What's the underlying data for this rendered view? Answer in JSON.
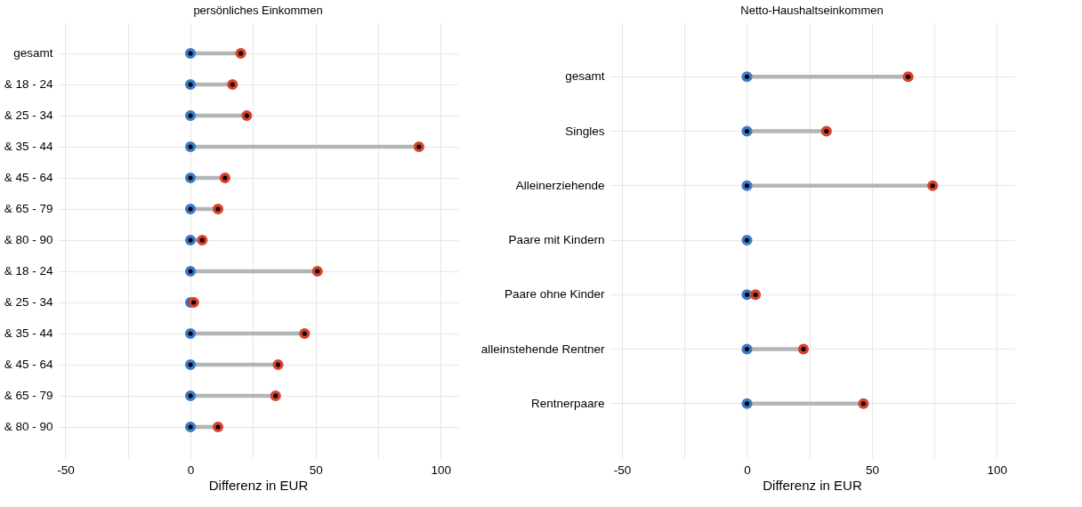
{
  "chart_data": [
    {
      "type": "lollipop",
      "orientation": "horizontal",
      "title": "persönliches Einkommen",
      "xlabel": "Differenz in EUR",
      "categories": [
        "gesamt",
        "& 18 - 24",
        "& 25 - 34",
        "& 35 - 44",
        "& 45 - 64",
        "& 65 - 79",
        "& 80 - 90",
        "& 18 - 24",
        "& 25 - 34",
        "& 35 - 44",
        "& 45 - 64",
        "& 65 - 79",
        "& 80 - 90"
      ],
      "series": [
        {
          "type": "scatter",
          "color": "#3a7bc8",
          "values": [
            0,
            0,
            0,
            0,
            0,
            0,
            0,
            0,
            0,
            0,
            0,
            0,
            0
          ]
        },
        {
          "color": "#d9412b",
          "values": [
            20.1,
            16.8,
            22.5,
            91.3,
            13.8,
            11,
            4.7,
            50.7,
            1.3,
            45.6,
            35,
            34,
            11
          ]
        }
      ],
      "xlim": [
        -53,
        107
      ],
      "xticks": [
        -50,
        {
          "value": -25,
          "label": null
        },
        0,
        {
          "value": 25,
          "label": null
        },
        50,
        {
          "value": 75,
          "label": null
        },
        100
      ],
      "grid": true,
      "marker": "circle"
    },
    {
      "type": "lollipop",
      "orientation": "horizontal",
      "title": "Netto-Haushaltseinkommen",
      "xlabel": "Differenz in EUR",
      "categories": [
        "gesamt",
        "Singles",
        "Alleinerziehende",
        "Paare mit Kindern",
        "Paare ohne Kinder",
        "alleinstehende Rentner",
        "Rentnerpaare"
      ],
      "series": [
        {
          "type": "scatter",
          "color": "#3a7bc8",
          "values": [
            0,
            0,
            0,
            0,
            0,
            0,
            0
          ]
        },
        {
          "color": "#d9412b",
          "values": [
            64.5,
            31.8,
            74.3,
            null,
            3.4,
            22.6,
            46.6
          ]
        }
      ],
      "xlim": [
        -55,
        107
      ],
      "xticks": [
        -50,
        {
          "value": -25,
          "label": null
        },
        0,
        {
          "value": 25,
          "label": null
        },
        50,
        {
          "value": 75,
          "label": null
        },
        100
      ],
      "grid": true,
      "marker": "circle"
    }
  ]
}
